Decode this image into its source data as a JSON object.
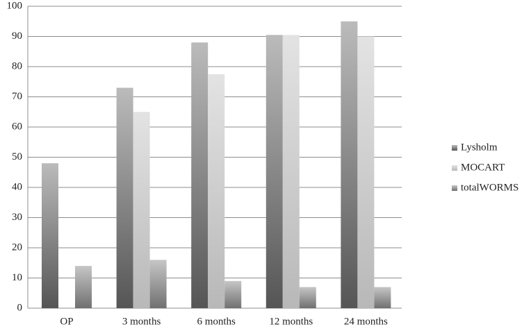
{
  "chart_data": {
    "type": "bar",
    "categories": [
      "OP",
      "3 months",
      "6 months",
      "12 months",
      "24 months"
    ],
    "series": [
      {
        "name": "Lysholm",
        "color": "#555555",
        "values": [
          48,
          73,
          88,
          90.5,
          95
        ]
      },
      {
        "name": "MOCART",
        "color": "#b8b8b8",
        "values": [
          null,
          65,
          77.5,
          90.5,
          90
        ]
      },
      {
        "name": "totalWORMS",
        "color": "#707070",
        "values": [
          14,
          16,
          9,
          7,
          7
        ]
      }
    ],
    "ylim": [
      0,
      100
    ],
    "yticks": [
      0,
      10,
      20,
      30,
      40,
      50,
      60,
      70,
      80,
      90,
      100
    ],
    "grid": true,
    "legend": "right"
  }
}
